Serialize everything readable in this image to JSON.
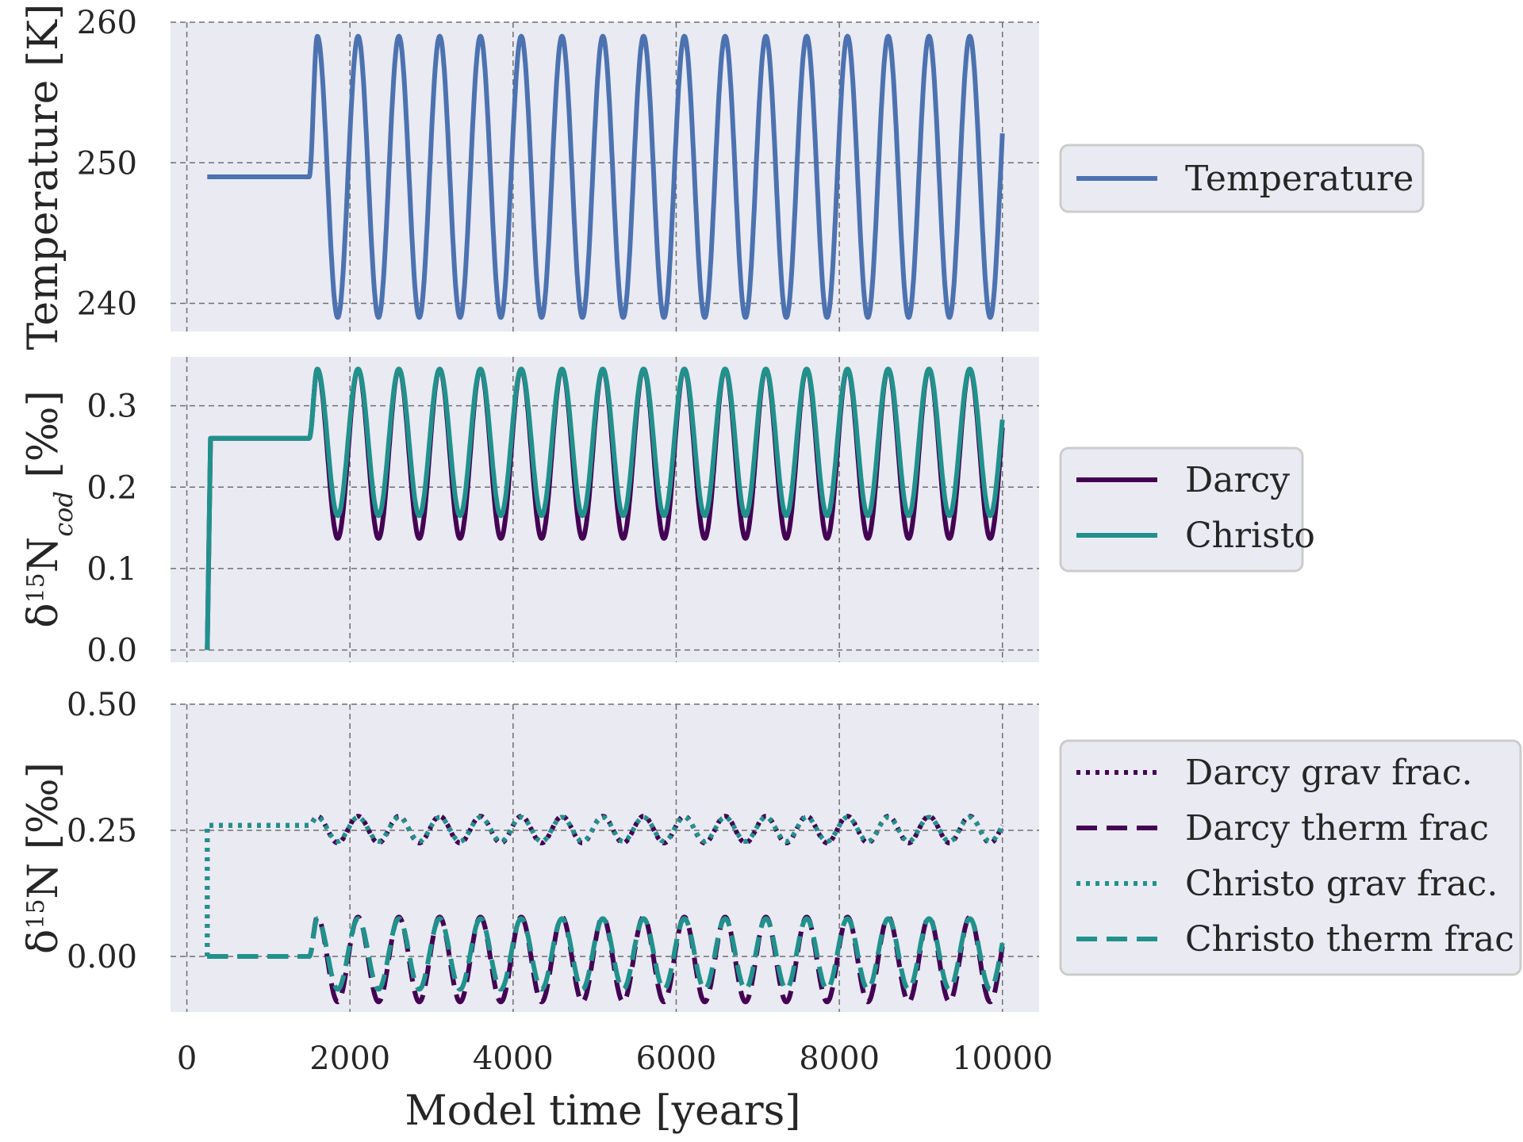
{
  "chart_data": [
    {
      "type": "line",
      "ylabel": "Temperature [K]",
      "ylim": [
        238,
        260
      ],
      "yticks": [
        240,
        250,
        260
      ],
      "xlim": [
        -200,
        10450
      ],
      "xticks": [
        0,
        2000,
        4000,
        6000,
        8000,
        10000
      ],
      "grid": true,
      "legend_position": "right",
      "x_start": 250,
      "x_end": 10000,
      "base_until": 1500,
      "base_value": 249,
      "period": 500,
      "series": [
        {
          "name": "Temperature",
          "mean": 249,
          "amplitude": 10,
          "peak_offset": 100,
          "color": "#4c72b0",
          "dash": "solid"
        }
      ]
    },
    {
      "type": "line",
      "ylabel": "δ15Ncod [‰]",
      "ylim": [
        -0.015,
        0.36
      ],
      "yticks": [
        "0.0",
        "0.1",
        "0.2",
        "0.3"
      ],
      "xlim": [
        -200,
        10450
      ],
      "xticks": [
        0,
        2000,
        4000,
        6000,
        8000,
        10000
      ],
      "grid": true,
      "legend_position": "right",
      "x_start": 250,
      "x_end": 10000,
      "base_until": 1500,
      "base_value": 0.26,
      "initial_value": 0.0,
      "period": 500,
      "series": [
        {
          "name": "Darcy",
          "min": 0.137,
          "max": 0.345,
          "peak_offset": 100,
          "color": "#440154",
          "dash": "solid"
        },
        {
          "name": "Christo",
          "min": 0.165,
          "max": 0.345,
          "peak_offset": 100,
          "color": "#21918c",
          "dash": "solid"
        }
      ]
    },
    {
      "type": "line",
      "ylabel": "δ15N [‰]",
      "ylim": [
        -0.11,
        0.5
      ],
      "yticks": [
        "0.00",
        "0.25",
        "0.50"
      ],
      "xlim": [
        -200,
        10450
      ],
      "xticks": [
        0,
        2000,
        4000,
        6000,
        8000,
        10000
      ],
      "grid": true,
      "legend_position": "right",
      "x_start": 250,
      "x_end": 10000,
      "base_until": 1500,
      "period": 500,
      "series": [
        {
          "name": "Darcy grav frac.",
          "base": 0.26,
          "min": 0.225,
          "max": 0.278,
          "peak_offset": 100,
          "color": "#440154",
          "dash": "dotted"
        },
        {
          "name": "Darcy therm frac",
          "base": 0.0,
          "min": -0.09,
          "max": 0.078,
          "peak_offset": 100,
          "color": "#440154",
          "dash": "dashed"
        },
        {
          "name": "Christo grav frac.",
          "base": 0.26,
          "min": 0.228,
          "max": 0.276,
          "peak_offset": 100,
          "color": "#21918c",
          "dash": "dotted"
        },
        {
          "name": "Christo therm frac",
          "base": 0.0,
          "min": -0.065,
          "max": 0.075,
          "peak_offset": 100,
          "color": "#21918c",
          "dash": "dashed"
        }
      ]
    }
  ],
  "xlabel": "Model time [years]"
}
